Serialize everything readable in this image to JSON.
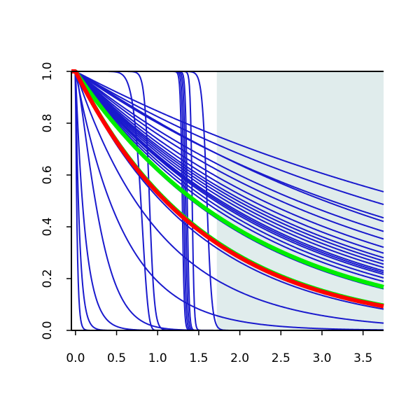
{
  "chart_data": {
    "type": "line",
    "title": "",
    "xlabel": "",
    "ylabel": "",
    "xlim": [
      -0.05,
      3.75
    ],
    "ylim": [
      0.0,
      1.0
    ],
    "x_ticks": [
      "0.0",
      "0.5",
      "1.0",
      "1.5",
      "2.0",
      "2.5",
      "3.0",
      "3.5"
    ],
    "y_ticks": [
      "0.0",
      "0.2",
      "0.4",
      "0.6",
      "0.8",
      "1.0"
    ],
    "grid": false,
    "legend": "none",
    "shaded_region": {
      "x_from": 1.72,
      "x_to": 3.75,
      "color": "#e0ecec"
    },
    "colors": {
      "blue": "#1a1acd",
      "red": "#ff0000",
      "green": "#00ee00",
      "axis": "#000000"
    },
    "series": [
      {
        "type": "weibull",
        "scale": 6.0,
        "shape": 1.0,
        "color": "#1a1acd"
      },
      {
        "type": "weibull",
        "scale": 5.2,
        "shape": 1.0,
        "color": "#1a1acd"
      },
      {
        "type": "weibull",
        "scale": 4.5,
        "shape": 1.0,
        "color": "#1a1acd"
      },
      {
        "type": "weibull",
        "scale": 4.3,
        "shape": 1.05,
        "color": "#1a1acd"
      },
      {
        "type": "weibull",
        "scale": 3.9,
        "shape": 1.0,
        "color": "#1a1acd"
      },
      {
        "type": "weibull",
        "scale": 3.6,
        "shape": 1.0,
        "color": "#1a1acd"
      },
      {
        "type": "weibull",
        "scale": 3.3,
        "shape": 1.0,
        "color": "#1a1acd"
      },
      {
        "type": "weibull",
        "scale": 3.1,
        "shape": 1.0,
        "color": "#1a1acd"
      },
      {
        "type": "weibull",
        "scale": 2.95,
        "shape": 1.0,
        "color": "#1a1acd"
      },
      {
        "type": "weibull",
        "scale": 2.85,
        "shape": 1.0,
        "color": "#1a1acd"
      },
      {
        "type": "weibull",
        "scale": 2.75,
        "shape": 1.0,
        "color": "#1a1acd"
      },
      {
        "type": "weibull",
        "scale": 2.65,
        "shape": 1.0,
        "color": "#1a1acd"
      },
      {
        "type": "weibull",
        "scale": 2.55,
        "shape": 1.0,
        "color": "#1a1acd"
      },
      {
        "type": "weibull",
        "scale": 2.5,
        "shape": 1.0,
        "color": "#1a1acd"
      },
      {
        "type": "weibull",
        "scale": 2.45,
        "shape": 1.0,
        "color": "#1a1acd"
      },
      {
        "type": "weibull",
        "scale": 2.35,
        "shape": 1.0,
        "color": "#1a1acd"
      },
      {
        "type": "weibull",
        "scale": 2.25,
        "shape": 1.0,
        "color": "#1a1acd"
      },
      {
        "type": "weibull",
        "scale": 2.05,
        "shape": 1.0,
        "color": "#1a1acd"
      },
      {
        "type": "weibull",
        "scale": 1.5,
        "shape": 1.0,
        "color": "#1a1acd"
      },
      {
        "type": "weibull",
        "scale": 1.05,
        "shape": 1.0,
        "color": "#1a1acd"
      },
      {
        "type": "weibull",
        "scale": 0.6,
        "shape": 1.0,
        "color": "#1a1acd"
      },
      {
        "type": "weibull",
        "scale": 0.32,
        "shape": 1.3,
        "color": "#1a1acd"
      },
      {
        "type": "weibull",
        "scale": 0.12,
        "shape": 1.0,
        "color": "#1a1acd"
      },
      {
        "type": "weibull",
        "scale": 0.05,
        "shape": 1.0,
        "color": "#1a1acd"
      },
      {
        "type": "weibull",
        "scale": 0.02,
        "shape": 1.0,
        "color": "#1a1acd"
      },
      {
        "type": "weibull",
        "scale": 0.82,
        "shape": 12,
        "color": "#1a1acd"
      },
      {
        "type": "step",
        "x_drop": 0.9,
        "width": 0.03,
        "color": "#1a1acd"
      },
      {
        "type": "step",
        "x_drop": 1.3,
        "width": 0.012,
        "color": "#1a1acd"
      },
      {
        "type": "step",
        "x_drop": 1.32,
        "width": 0.012,
        "color": "#1a1acd"
      },
      {
        "type": "step",
        "x_drop": 1.34,
        "width": 0.012,
        "color": "#1a1acd"
      },
      {
        "type": "step",
        "x_drop": 1.36,
        "width": 0.012,
        "color": "#1a1acd"
      },
      {
        "type": "step",
        "x_drop": 1.42,
        "width": 0.012,
        "color": "#1a1acd"
      },
      {
        "type": "step",
        "x_drop": 1.6,
        "width": 0.03,
        "color": "#1a1acd"
      },
      {
        "type": "weibull",
        "scale": 2.1,
        "shape": 1.0,
        "color": "#00ee00",
        "emphasis": true
      },
      {
        "type": "weibull",
        "scale": 1.6,
        "shape": 1.0,
        "color": "#00ee00",
        "emphasis": true
      },
      {
        "type": "weibull",
        "scale": 1.58,
        "shape": 1.0,
        "color": "#ff0000",
        "emphasis": true
      }
    ]
  }
}
